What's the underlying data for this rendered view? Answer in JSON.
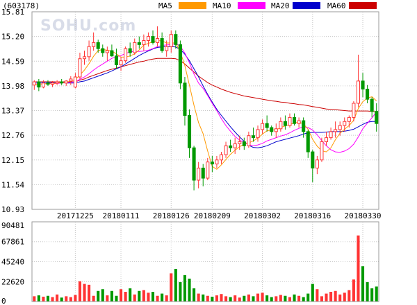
{
  "title": "(603178)",
  "watermark": "SOHU.com",
  "legend": [
    {
      "name": "MA5",
      "color": "#ff9900"
    },
    {
      "name": "MA10",
      "color": "#ff00ff"
    },
    {
      "name": "MA20",
      "color": "#0000cc"
    },
    {
      "name": "MA60",
      "color": "#cc0000"
    }
  ],
  "colors": {
    "up": "#ff3333",
    "down": "#009900",
    "grid": "#c8c8c8",
    "frame": "#999999"
  },
  "chart_data": [
    {
      "type": "candlestick",
      "y_ticks": [
        "15.81",
        "15.20",
        "14.59",
        "13.98",
        "13.37",
        "12.76",
        "12.15",
        "11.54",
        "10.93"
      ],
      "ylim": [
        10.93,
        15.81
      ],
      "x_ticks": [
        {
          "label": "20171225",
          "index": 9
        },
        {
          "label": "20180111",
          "index": 19
        },
        {
          "label": "20180126",
          "index": 30
        },
        {
          "label": "20180209",
          "index": 39
        },
        {
          "label": "20180302",
          "index": 50
        },
        {
          "label": "20180316",
          "index": 61
        },
        {
          "label": "20180330",
          "index": 72
        }
      ],
      "candles": [
        [
          14.0,
          14.12,
          13.88,
          14.08
        ],
        [
          14.08,
          14.15,
          13.85,
          13.95
        ],
        [
          13.95,
          14.12,
          13.92,
          14.05
        ],
        [
          14.05,
          14.12,
          13.98,
          14.02
        ],
        [
          14.02,
          14.1,
          13.95,
          14.05
        ],
        [
          14.05,
          14.12,
          14.0,
          14.08
        ],
        [
          14.08,
          14.15,
          14.0,
          14.05
        ],
        [
          14.05,
          14.12,
          13.98,
          14.1
        ],
        [
          14.1,
          14.22,
          14.0,
          14.15
        ],
        [
          13.95,
          14.3,
          13.92,
          14.2
        ],
        [
          14.2,
          14.8,
          14.15,
          14.65
        ],
        [
          14.65,
          14.85,
          14.5,
          14.7
        ],
        [
          14.7,
          15.1,
          14.6,
          14.95
        ],
        [
          14.95,
          15.3,
          14.85,
          15.05
        ],
        [
          15.05,
          15.12,
          14.8,
          14.9
        ],
        [
          14.9,
          15.0,
          14.7,
          14.8
        ],
        [
          14.8,
          14.95,
          14.6,
          14.85
        ],
        [
          14.85,
          15.0,
          14.7,
          14.72
        ],
        [
          14.72,
          14.9,
          14.4,
          14.5
        ],
        [
          14.5,
          14.7,
          14.35,
          14.6
        ],
        [
          14.6,
          14.95,
          14.55,
          14.9
        ],
        [
          14.9,
          15.05,
          14.7,
          14.8
        ],
        [
          14.8,
          15.15,
          14.75,
          15.05
        ],
        [
          15.05,
          15.2,
          14.9,
          15.0
        ],
        [
          15.0,
          15.25,
          14.85,
          15.1
        ],
        [
          15.1,
          15.3,
          14.95,
          15.2
        ],
        [
          15.2,
          15.35,
          15.0,
          15.05
        ],
        [
          15.05,
          15.45,
          14.95,
          15.15
        ],
        [
          15.15,
          15.3,
          14.8,
          14.85
        ],
        [
          14.85,
          15.1,
          14.7,
          14.95
        ],
        [
          14.95,
          15.35,
          14.8,
          15.25
        ],
        [
          15.25,
          15.35,
          14.9,
          15.0
        ],
        [
          15.0,
          15.1,
          13.9,
          14.05
        ],
        [
          14.05,
          14.2,
          13.0,
          13.25
        ],
        [
          13.25,
          13.4,
          12.2,
          12.45
        ],
        [
          12.45,
          12.5,
          11.4,
          11.65
        ],
        [
          11.65,
          12.1,
          11.45,
          11.95
        ],
        [
          11.95,
          12.05,
          11.5,
          11.7
        ],
        [
          11.7,
          12.2,
          11.65,
          12.1
        ],
        [
          12.1,
          12.25,
          11.85,
          12.05
        ],
        [
          12.05,
          12.25,
          11.95,
          12.15
        ],
        [
          12.15,
          12.35,
          12.05,
          12.28
        ],
        [
          12.28,
          12.6,
          12.2,
          12.5
        ],
        [
          12.5,
          12.65,
          12.35,
          12.45
        ],
        [
          12.45,
          12.7,
          12.3,
          12.55
        ],
        [
          12.55,
          12.75,
          12.4,
          12.6
        ],
        [
          12.6,
          12.7,
          12.4,
          12.5
        ],
        [
          12.5,
          12.85,
          12.45,
          12.75
        ],
        [
          12.75,
          12.95,
          12.6,
          12.7
        ],
        [
          12.7,
          13.0,
          12.6,
          12.9
        ],
        [
          12.9,
          13.15,
          12.8,
          13.05
        ],
        [
          13.05,
          13.25,
          12.85,
          12.95
        ],
        [
          12.95,
          13.0,
          12.75,
          12.85
        ],
        [
          12.85,
          13.05,
          12.7,
          12.92
        ],
        [
          12.92,
          13.2,
          12.85,
          13.1
        ],
        [
          13.1,
          13.25,
          12.9,
          13.0
        ],
        [
          13.0,
          13.3,
          12.95,
          13.2
        ],
        [
          13.2,
          13.3,
          13.0,
          13.05
        ],
        [
          13.05,
          13.2,
          12.95,
          13.12
        ],
        [
          13.12,
          13.2,
          12.7,
          12.85
        ],
        [
          12.85,
          12.9,
          12.2,
          12.35
        ],
        [
          12.35,
          12.4,
          11.6,
          11.95
        ],
        [
          11.95,
          12.25,
          11.8,
          12.15
        ],
        [
          12.15,
          12.7,
          12.1,
          12.6
        ],
        [
          12.6,
          12.85,
          12.5,
          12.7
        ],
        [
          12.7,
          12.95,
          12.65,
          12.85
        ],
        [
          12.85,
          13.1,
          12.7,
          12.9
        ],
        [
          12.9,
          13.1,
          12.75,
          13.0
        ],
        [
          13.0,
          13.2,
          12.85,
          13.1
        ],
        [
          13.1,
          13.25,
          12.95,
          13.2
        ],
        [
          13.2,
          13.6,
          13.1,
          13.55
        ],
        [
          13.55,
          14.75,
          13.45,
          14.1
        ],
        [
          14.1,
          14.3,
          13.7,
          13.9
        ],
        [
          13.9,
          14.0,
          13.55,
          13.65
        ],
        [
          13.65,
          13.7,
          13.2,
          13.35
        ],
        [
          13.35,
          13.55,
          12.85,
          13.05
        ]
      ],
      "ma5": [
        14.02,
        14.02,
        14.03,
        14.04,
        14.03,
        14.05,
        14.06,
        14.07,
        14.1,
        14.13,
        14.25,
        14.37,
        14.53,
        14.71,
        14.85,
        14.88,
        14.86,
        14.84,
        14.77,
        14.69,
        14.69,
        14.72,
        14.77,
        14.87,
        14.99,
        15.03,
        15.07,
        15.1,
        15.09,
        15.04,
        15.04,
        15.04,
        14.82,
        14.48,
        14.0,
        13.5,
        13.07,
        12.8,
        12.37,
        11.99,
        11.92,
        12.03,
        12.16,
        12.29,
        12.39,
        12.48,
        12.54,
        12.57,
        12.62,
        12.69,
        12.79,
        12.87,
        12.89,
        12.89,
        12.95,
        12.99,
        13.03,
        13.06,
        13.09,
        13.04,
        12.91,
        12.66,
        12.49,
        12.38,
        12.35,
        12.45,
        12.65,
        12.81,
        12.91,
        13.0,
        13.13,
        13.42,
        13.59,
        13.68,
        13.71,
        13.61
      ],
      "ma10": [
        14.03,
        14.03,
        14.03,
        14.04,
        14.04,
        14.04,
        14.05,
        14.06,
        14.07,
        14.08,
        14.14,
        14.2,
        14.28,
        14.37,
        14.45,
        14.52,
        14.59,
        14.66,
        14.7,
        14.73,
        14.78,
        14.82,
        14.83,
        14.83,
        14.84,
        14.86,
        14.9,
        14.95,
        14.98,
        14.99,
        15.0,
        15.02,
        14.96,
        14.79,
        14.55,
        14.27,
        14.05,
        13.92,
        13.74,
        13.55,
        13.37,
        13.17,
        13.0,
        12.86,
        12.73,
        12.64,
        12.58,
        12.53,
        12.5,
        12.52,
        12.56,
        12.62,
        12.66,
        12.7,
        12.74,
        12.77,
        12.82,
        12.88,
        12.93,
        12.97,
        12.95,
        12.89,
        12.77,
        12.63,
        12.5,
        12.4,
        12.35,
        12.34,
        12.37,
        12.43,
        12.54,
        12.72,
        12.92,
        13.06,
        13.19,
        13.34
      ],
      "ma20": [
        14.07,
        14.07,
        14.07,
        14.07,
        14.06,
        14.06,
        14.06,
        14.05,
        14.05,
        14.05,
        14.08,
        14.1,
        14.14,
        14.18,
        14.22,
        14.26,
        14.3,
        14.35,
        14.4,
        14.45,
        14.52,
        14.59,
        14.66,
        14.73,
        14.79,
        14.84,
        14.89,
        14.93,
        14.94,
        14.95,
        14.95,
        14.94,
        14.88,
        14.76,
        14.6,
        14.4,
        14.2,
        13.98,
        13.77,
        13.58,
        13.4,
        13.25,
        13.11,
        12.97,
        12.84,
        12.72,
        12.61,
        12.51,
        12.46,
        12.45,
        12.47,
        12.5,
        12.55,
        12.6,
        12.63,
        12.66,
        12.69,
        12.72,
        12.75,
        12.79,
        12.82,
        12.83,
        12.83,
        12.83,
        12.84,
        12.85,
        12.85,
        12.85,
        12.86,
        12.88,
        12.91,
        12.97,
        13.03,
        13.08,
        13.1,
        13.1
      ],
      "ma60": [
        14.08,
        14.08,
        14.08,
        14.08,
        14.08,
        14.08,
        14.08,
        14.08,
        14.08,
        14.08,
        14.12,
        14.15,
        14.2,
        14.24,
        14.28,
        14.32,
        14.36,
        14.39,
        14.42,
        14.45,
        14.48,
        14.51,
        14.54,
        14.57,
        14.59,
        14.62,
        14.64,
        14.66,
        14.66,
        14.66,
        14.66,
        14.65,
        14.6,
        14.52,
        14.42,
        14.32,
        14.22,
        14.14,
        14.06,
        14.0,
        13.95,
        13.9,
        13.86,
        13.82,
        13.79,
        13.76,
        13.73,
        13.71,
        13.69,
        13.67,
        13.65,
        13.63,
        13.61,
        13.6,
        13.58,
        13.57,
        13.55,
        13.54,
        13.52,
        13.51,
        13.49,
        13.47,
        13.45,
        13.43,
        13.41,
        13.4,
        13.39,
        13.38,
        13.37,
        13.36,
        13.36,
        13.36,
        13.36,
        13.36,
        13.35,
        13.34
      ]
    },
    {
      "type": "bar",
      "name": "volume",
      "y_ticks": [
        "90481",
        "67861",
        "45240",
        "22620",
        "0"
      ],
      "ylim": [
        0,
        90481
      ],
      "values": [
        6000,
        7000,
        5500,
        6500,
        5000,
        8000,
        4500,
        6000,
        5000,
        7500,
        23000,
        20000,
        19000,
        6500,
        12000,
        14000,
        7000,
        12000,
        6500,
        14000,
        11000,
        15000,
        8000,
        12000,
        13000,
        10000,
        11000,
        6500,
        9000,
        7000,
        32000,
        37000,
        22000,
        30000,
        26000,
        15000,
        9000,
        8000,
        6500,
        5500,
        7000,
        8500,
        6000,
        5000,
        7000,
        4500,
        6500,
        8000,
        6000,
        9000,
        10000,
        7000,
        5000,
        6000,
        7500,
        6500,
        5000,
        8000,
        6500,
        5000,
        9000,
        20000,
        14000,
        6000,
        9000,
        11000,
        12000,
        8000,
        10000,
        13000,
        25000,
        75000,
        40000,
        22000,
        15000,
        17000
      ]
    }
  ]
}
